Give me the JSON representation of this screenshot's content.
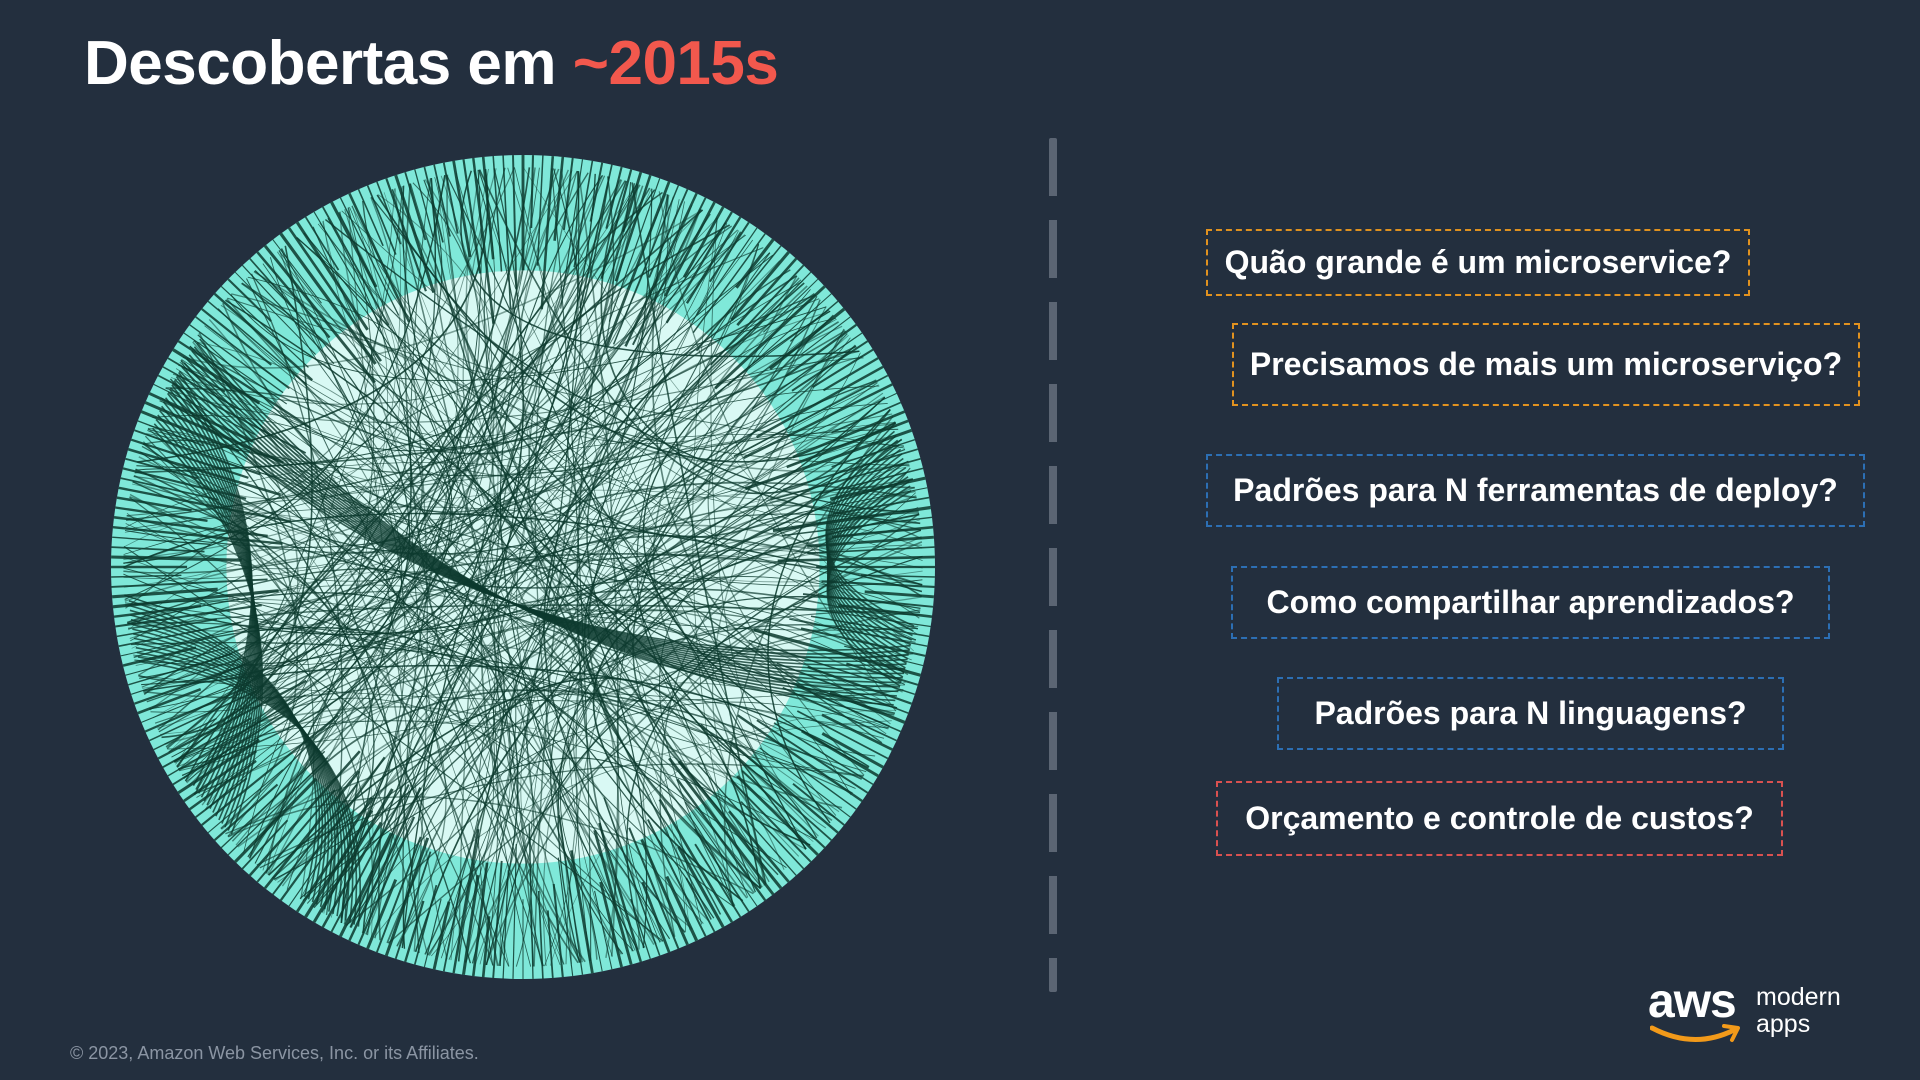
{
  "slide": {
    "title_main": "Descobertas em ",
    "title_accent": "~2015s",
    "questions": [
      {
        "text": "Quão grande é um microservice?",
        "color": "orange"
      },
      {
        "text": "Precisamos de mais um microserviço?",
        "color": "orange"
      },
      {
        "text": "Padrões para N ferramentas de deploy?",
        "color": "blue"
      },
      {
        "text": "Como compartilhar aprendizados?",
        "color": "blue"
      },
      {
        "text": "Padrões para N linguagens?",
        "color": "blue"
      },
      {
        "text": "Orçamento e controle de custos?",
        "color": "red"
      }
    ],
    "copyright": "© 2023, Amazon Web Services, Inc. or its Affiliates.",
    "logo": {
      "brand": "aws",
      "line1": "modern",
      "line2": "apps"
    }
  },
  "colors": {
    "background": "#232f3e",
    "accent": "#f2584d",
    "orange_border": "#e1921f",
    "blue_border": "#2c6fb4",
    "red_border": "#d95150",
    "graph_fill": "#7fe8d9",
    "graph_lines": "#0c3a2e"
  },
  "icons": {
    "graph": "microservices-dependency-graph-image",
    "logo": "aws-smile-logo"
  }
}
